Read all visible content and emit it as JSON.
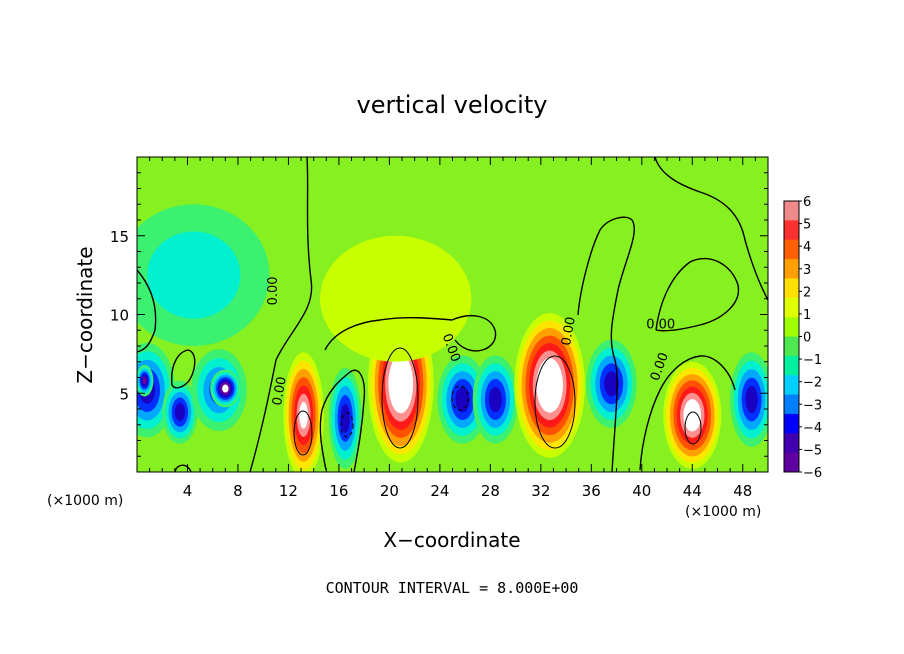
{
  "chart_data": {
    "type": "heatmap",
    "title": "vertical velocity",
    "xlabel": "X−coordinate",
    "ylabel": "Z−coordinate",
    "x_unit_label_left": "(×1000 m)",
    "x_unit_label_right": "(×1000 m)",
    "footer": "CONTOUR INTERVAL = 8.000E+00",
    "xlim": [
      0,
      50
    ],
    "ylim": [
      0,
      20
    ],
    "x_ticks": [
      4,
      8,
      12,
      16,
      20,
      24,
      28,
      32,
      36,
      40,
      44,
      48
    ],
    "x_tick_labels": [
      "4",
      "8",
      "12",
      "16",
      "20",
      "24",
      "28",
      "32",
      "36",
      "40",
      "44",
      "48"
    ],
    "y_ticks": [
      5,
      10,
      15
    ],
    "y_tick_labels": [
      "5",
      "10",
      "15"
    ],
    "colorbar": {
      "min": -6,
      "max": 6,
      "ticks": [
        "6",
        "5",
        "4",
        "3",
        "2",
        "1",
        "0",
        "−1",
        "−2",
        "−3",
        "−4",
        "−5",
        "−6"
      ],
      "colors": [
        "#f08a8a",
        "#ff3030",
        "#ff6000",
        "#ffa000",
        "#ffe000",
        "#e0ff00",
        "#a0ff00",
        "#50e850",
        "#00f0a0",
        "#00d0ff",
        "#0080ff",
        "#0000ff",
        "#4000b0",
        "#6000a0"
      ]
    },
    "contour_labels": [
      {
        "text": "0.00",
        "x": 11.1,
        "y": 11.5,
        "rot": -90
      },
      {
        "text": "0.00",
        "x": 11.6,
        "y": 5.1,
        "rot": -80
      },
      {
        "text": "0.00",
        "x": 24.6,
        "y": 7.8,
        "rot": 70
      },
      {
        "text": "0.00",
        "x": 34.5,
        "y": 8.9,
        "rot": -80
      },
      {
        "text": "0.00",
        "x": 41.5,
        "y": 9.1,
        "rot": 0
      },
      {
        "text": "0.00",
        "x": 41.7,
        "y": 6.6,
        "rot": -70
      }
    ],
    "cells": [
      {
        "x": 0.8,
        "y": 5.2,
        "rx": 2.2,
        "ry": 3.0,
        "v": -4.2
      },
      {
        "x": 0.6,
        "y": 5.8,
        "rx": 0.7,
        "ry": 1.0,
        "v": -5.8
      },
      {
        "x": 3.4,
        "y": 3.8,
        "rx": 1.4,
        "ry": 2.0,
        "v": -4.5
      },
      {
        "x": 6.5,
        "y": 5.2,
        "rx": 2.2,
        "ry": 2.6,
        "v": -4.0
      },
      {
        "x": 7.0,
        "y": 5.3,
        "rx": 1.2,
        "ry": 1.2,
        "v": -7.0
      },
      {
        "x": 4.5,
        "y": 12.5,
        "rx": 6.0,
        "ry": 4.5,
        "v": -1.6
      },
      {
        "x": 13.2,
        "y": 3.6,
        "rx": 1.6,
        "ry": 4.0,
        "v": 6.5
      },
      {
        "x": 16.5,
        "y": 3.4,
        "rx": 1.3,
        "ry": 3.2,
        "v": -4.6
      },
      {
        "x": 20.9,
        "y": 5.6,
        "rx": 2.6,
        "ry": 5.0,
        "v": 9.0
      },
      {
        "x": 25.8,
        "y": 4.6,
        "rx": 2.0,
        "ry": 2.8,
        "v": -4.5
      },
      {
        "x": 28.4,
        "y": 4.6,
        "rx": 1.8,
        "ry": 2.8,
        "v": -4.2
      },
      {
        "x": 32.7,
        "y": 5.5,
        "rx": 2.8,
        "ry": 4.6,
        "v": 9.0
      },
      {
        "x": 37.6,
        "y": 5.6,
        "rx": 2.0,
        "ry": 2.8,
        "v": -4.6
      },
      {
        "x": 44.0,
        "y": 3.6,
        "rx": 2.3,
        "ry": 3.4,
        "v": 7.5
      },
      {
        "x": 48.7,
        "y": 4.6,
        "rx": 1.7,
        "ry": 3.0,
        "v": -4.4
      },
      {
        "x": 20.5,
        "y": 11.0,
        "rx": 6.0,
        "ry": 4.0,
        "v": 1.0
      }
    ]
  }
}
